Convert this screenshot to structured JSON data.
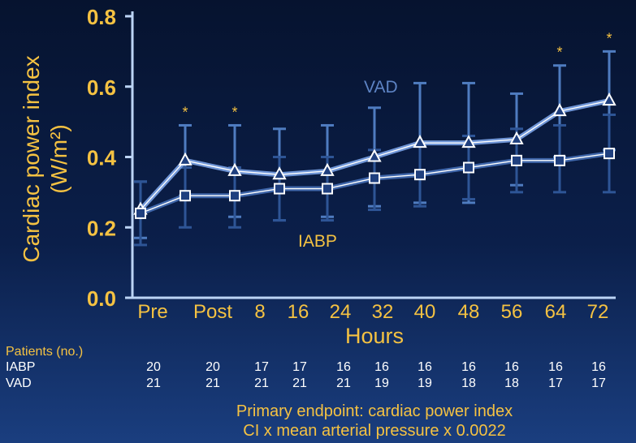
{
  "chart_data": {
    "type": "line",
    "ylabel": "Cardiac power index (W/m²)",
    "xlabel": "Hours",
    "categories": [
      "Pre",
      "Post",
      "8",
      "16",
      "24",
      "32",
      "40",
      "48",
      "56",
      "64",
      "72"
    ],
    "ylim": [
      0.0,
      0.8
    ],
    "yticks": [
      "0.0",
      "0.2",
      "0.4",
      "0.6",
      "0.8"
    ],
    "series": [
      {
        "name": "VAD",
        "marker": "triangle",
        "color": "#5d83c4",
        "values": [
          0.25,
          0.39,
          0.36,
          0.35,
          0.36,
          0.4,
          0.44,
          0.44,
          0.45,
          0.53,
          0.56
        ],
        "upper": [
          0.33,
          0.49,
          0.49,
          0.48,
          0.49,
          0.54,
          0.61,
          0.61,
          0.58,
          0.66,
          0.7
        ],
        "lower": [
          0.17,
          0.29,
          0.23,
          0.22,
          0.23,
          0.26,
          0.27,
          0.27,
          0.32,
          0.4,
          0.42
        ]
      },
      {
        "name": "IABP",
        "marker": "square",
        "color": "#f5c242",
        "values": [
          0.24,
          0.29,
          0.29,
          0.31,
          0.31,
          0.34,
          0.35,
          0.37,
          0.39,
          0.39,
          0.41
        ],
        "upper": [
          0.33,
          0.37,
          0.37,
          0.4,
          0.4,
          0.42,
          0.43,
          0.46,
          0.48,
          0.49,
          0.52
        ],
        "lower": [
          0.15,
          0.2,
          0.2,
          0.22,
          0.22,
          0.25,
          0.26,
          0.28,
          0.3,
          0.3,
          0.3
        ]
      }
    ],
    "significance_marker": "*",
    "significant_at": [
      "Post",
      "8",
      "64",
      "72"
    ],
    "grid": false
  },
  "patients": {
    "title": "Patients (no.)",
    "rows": [
      {
        "label": "IABP",
        "values": [
          "20",
          "20",
          "17",
          "17",
          "16",
          "16",
          "16",
          "16",
          "16",
          "16",
          "16"
        ]
      },
      {
        "label": "VAD",
        "values": [
          "21",
          "21",
          "21",
          "21",
          "21",
          "19",
          "19",
          "18",
          "18",
          "17",
          "17"
        ]
      }
    ]
  },
  "footnote": {
    "line1": "Primary endpoint: cardiac power index",
    "line2": "CI x mean arterial pressure x 0.0022"
  }
}
